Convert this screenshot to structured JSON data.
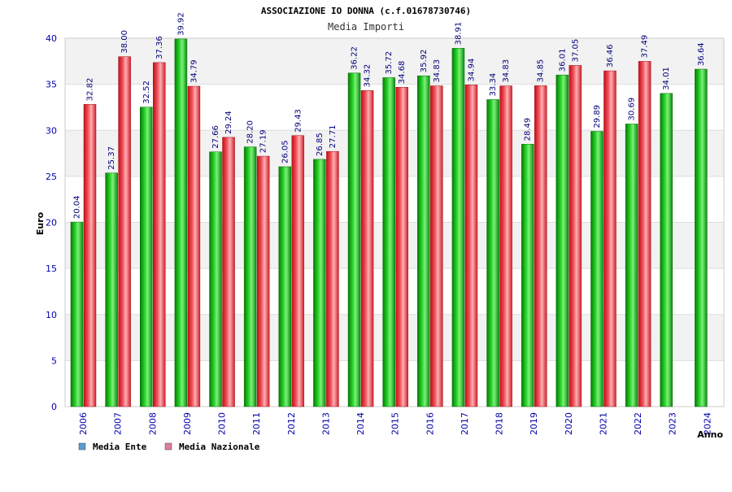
{
  "chart_data": {
    "type": "bar",
    "title": "ASSOCIAZIONE IO DONNA (c.f.01678730746)",
    "subtitle": "Media Importi",
    "xlabel": "Anno",
    "ylabel": "Euro",
    "ylim": [
      0,
      40
    ],
    "yticks": [
      0,
      5,
      10,
      15,
      20,
      25,
      30,
      35,
      40
    ],
    "grid": true,
    "legend_position": "bottom-left",
    "categories": [
      "2006",
      "2007",
      "2008",
      "2009",
      "2010",
      "2011",
      "2012",
      "2013",
      "2014",
      "2015",
      "2016",
      "2017",
      "2018",
      "2019",
      "2020",
      "2021",
      "2022",
      "2023",
      "2024"
    ],
    "series": [
      {
        "name": "Media Ente",
        "legend_color": "#5b9bd5",
        "bar_color": "#22bb22",
        "values": [
          20.04,
          25.37,
          32.52,
          39.92,
          27.66,
          28.2,
          26.05,
          26.85,
          36.22,
          35.72,
          35.92,
          38.91,
          33.34,
          28.49,
          36.01,
          29.89,
          30.69,
          34.01,
          36.64
        ],
        "labels": [
          "20.04",
          "25.37",
          "32.52",
          "39.92",
          "27.66",
          "28.20",
          "26.05",
          "26.85",
          "36.22",
          "35.72",
          "35.92",
          "38.91",
          "33.34",
          "28.49",
          "36.01",
          "29.89",
          "30.69",
          "34.01",
          "36.64"
        ]
      },
      {
        "name": "Media Nazionale",
        "legend_color": "#e07aa0",
        "bar_color": "#e8303a",
        "values": [
          32.82,
          38.0,
          37.36,
          34.79,
          29.24,
          27.19,
          29.43,
          27.71,
          34.32,
          34.68,
          34.83,
          34.94,
          34.83,
          34.85,
          37.05,
          36.46,
          37.49,
          null,
          null
        ],
        "labels": [
          "32.82",
          "38.00",
          "37.36",
          "34.79",
          "29.24",
          "27.19",
          "29.43",
          "27.71",
          "34.32",
          "34.68",
          "34.83",
          "34.94",
          "34.83",
          "34.85",
          "37.05",
          "36.46",
          "37.49",
          null,
          null
        ]
      }
    ]
  }
}
